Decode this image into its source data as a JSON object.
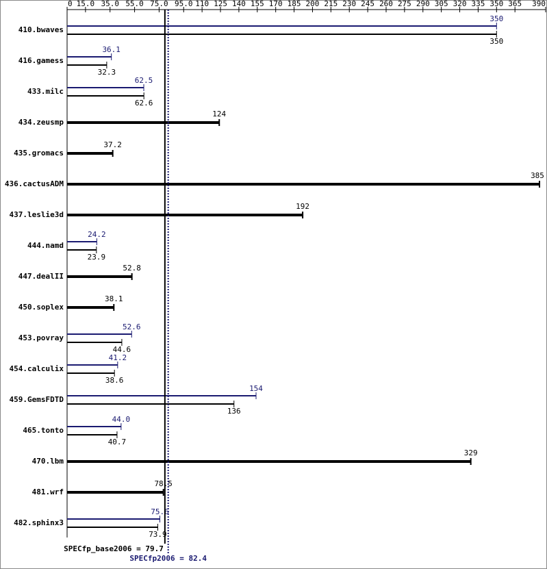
{
  "chart_data": {
    "type": "bar",
    "orientation": "horizontal",
    "categories": [
      "410.bwaves",
      "416.gamess",
      "433.milc",
      "434.zeusmp",
      "435.gromacs",
      "436.cactusADM",
      "437.leslie3d",
      "444.namd",
      "447.dealII",
      "450.soplex",
      "453.povray",
      "454.calculix",
      "459.GemsFDTD",
      "465.tonto",
      "470.lbm",
      "481.wrf",
      "482.sphinx3"
    ],
    "series": [
      {
        "color": "#191970",
        "values": [
          350,
          36.1,
          62.5,
          null,
          null,
          null,
          null,
          24.2,
          null,
          null,
          52.6,
          41.2,
          154,
          44.0,
          null,
          null,
          75.6
        ],
        "value_labels": [
          "350",
          "36.1",
          "62.5",
          null,
          null,
          null,
          null,
          "24.2",
          null,
          null,
          "52.6",
          "41.2",
          "154",
          "44.0",
          null,
          null,
          "75.6"
        ]
      },
      {
        "color": "#000000",
        "values": [
          350,
          32.3,
          62.6,
          124,
          37.2,
          385,
          192,
          23.9,
          52.8,
          38.1,
          44.6,
          38.6,
          136,
          40.7,
          329,
          78.5,
          73.9
        ]
      }
    ],
    "xlim": [
      0,
      390
    ],
    "xticks": [
      0,
      {
        "value": 15,
        "label": "15.0"
      },
      {
        "value": 35,
        "label": "35.0"
      },
      {
        "value": 55,
        "label": "55.0"
      },
      {
        "value": 75,
        "label": "75.0"
      },
      {
        "value": 95,
        "label": "95.0"
      },
      110,
      125,
      140,
      155,
      170,
      185,
      200,
      215,
      230,
      245,
      260,
      275,
      290,
      305,
      320,
      335,
      350,
      365,
      390
    ],
    "reference_lines": [
      {
        "label": "SPECfp_base2006 = 79.7",
        "value": 79.7,
        "color": "#000000",
        "style": "solid"
      },
      {
        "label": "SPECfp2006 = 82.4",
        "value": 82.4,
        "color": "#191970",
        "style": "dotted"
      }
    ]
  }
}
